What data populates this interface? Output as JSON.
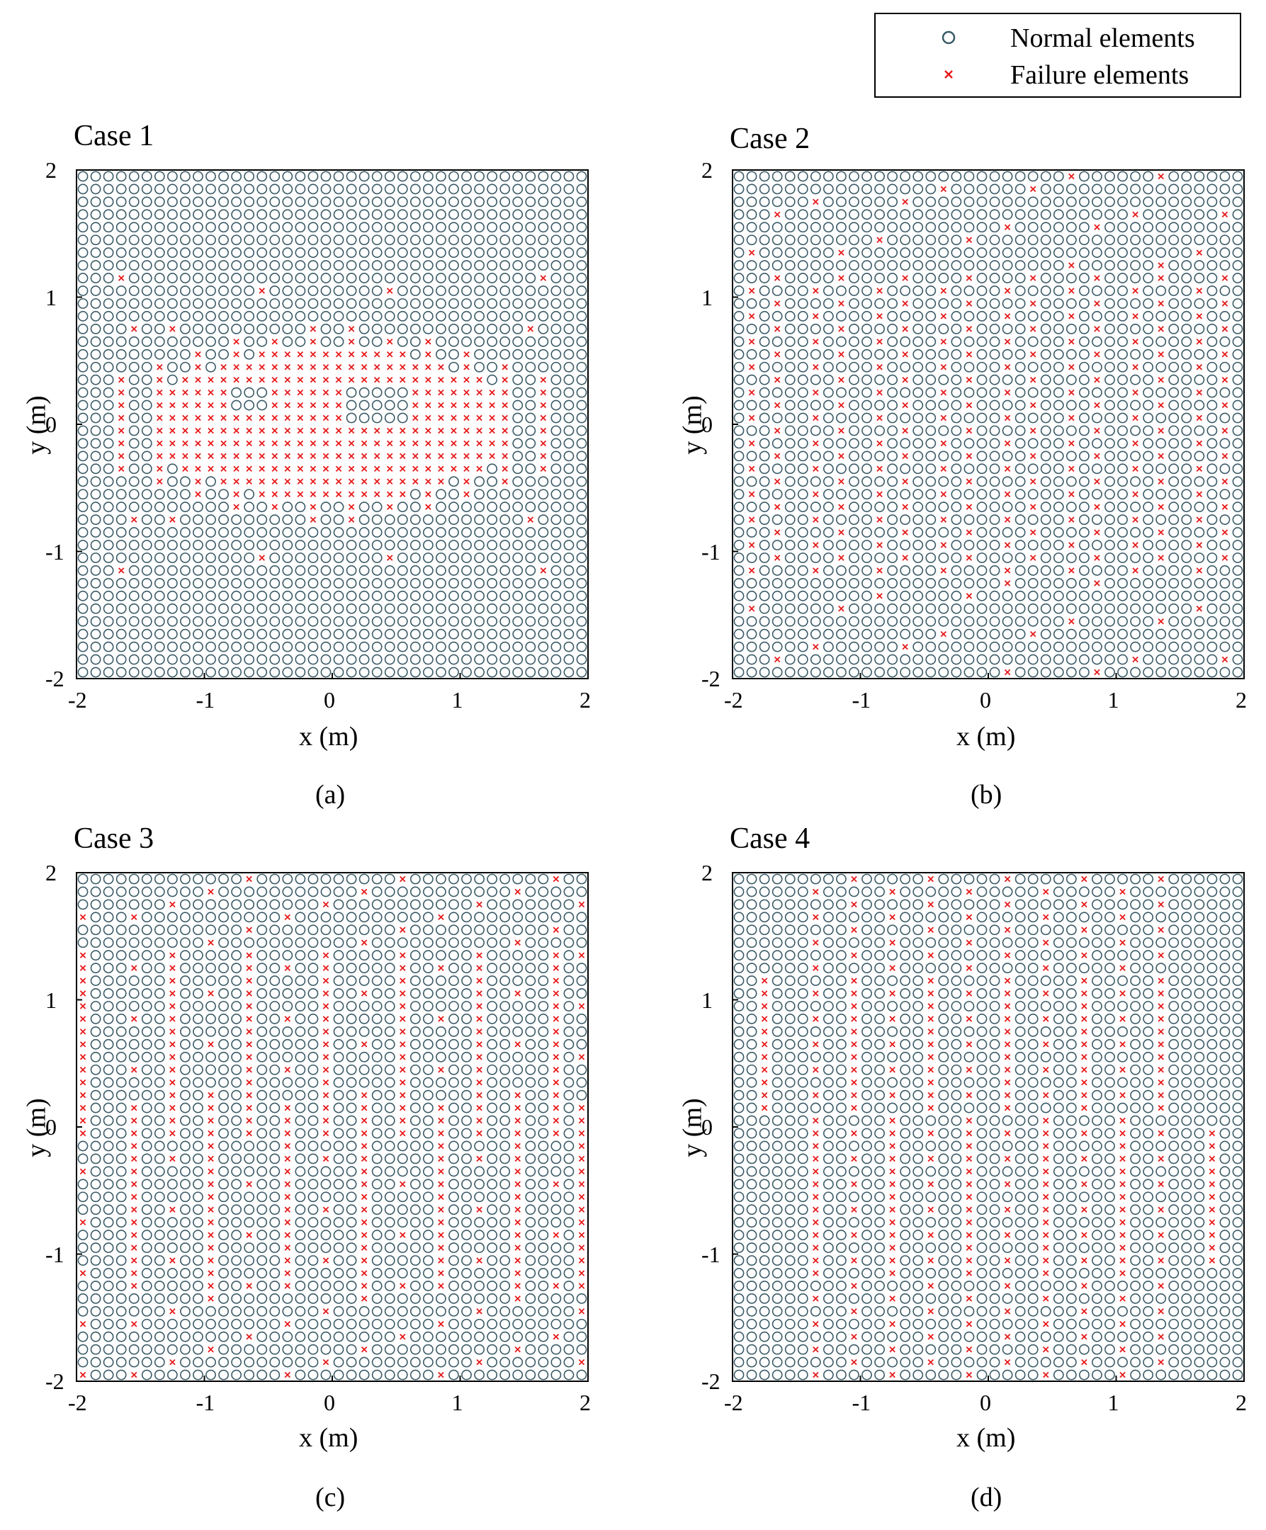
{
  "legend": {
    "normal_label": "Normal elements",
    "failure_label": "Failure elements"
  },
  "colors": {
    "normal": "#3a5a66",
    "failure": "#e8191a",
    "axes": "#000000"
  },
  "chart_data": [
    {
      "type": "scatter",
      "title": "Case 1",
      "panel_label": "(a)",
      "xlabel": "x (m)",
      "ylabel": "y (m)",
      "xlim": [
        -2,
        2
      ],
      "ylim": [
        -2,
        2
      ],
      "xticks": [
        "-2",
        "-1",
        "0",
        "1",
        "2"
      ],
      "yticks": [
        "-2",
        "-1",
        "0",
        "1",
        "2"
      ],
      "grid_n": 40,
      "cell_size": 0.1,
      "series": [
        {
          "name": "Normal elements",
          "marker": "circle",
          "points": "all grid elements not listed as failure"
        },
        {
          "name": "Failure elements",
          "marker": "x",
          "pattern": "case1_central_cluster"
        }
      ]
    },
    {
      "type": "scatter",
      "title": "Case 2",
      "panel_label": "(b)",
      "xlabel": "x (m)",
      "ylabel": "y (m)",
      "xlim": [
        -2,
        2
      ],
      "ylim": [
        -2,
        2
      ],
      "xticks": [
        "-2",
        "-1",
        "0",
        "1",
        "2"
      ],
      "yticks": [
        "-2",
        "-1",
        "0",
        "1",
        "2"
      ],
      "grid_n": 40,
      "cell_size": 0.1,
      "series": [
        {
          "name": "Normal elements",
          "marker": "circle",
          "points": "all grid elements not listed as failure"
        },
        {
          "name": "Failure elements",
          "marker": "x",
          "pattern": "case2_scattered_columns"
        }
      ]
    },
    {
      "type": "scatter",
      "title": "Case 3",
      "panel_label": "(c)",
      "xlabel": "x (m)",
      "ylabel": "y (m)",
      "xlim": [
        -2,
        2
      ],
      "ylim": [
        -2,
        2
      ],
      "xticks": [
        "-2",
        "-1",
        "0",
        "1",
        "2"
      ],
      "yticks": [
        "-2",
        "-1",
        "0",
        "1",
        "2"
      ],
      "grid_n": 40,
      "cell_size": 0.1,
      "series": [
        {
          "name": "Normal elements",
          "marker": "circle",
          "points": "all grid elements not listed as failure"
        },
        {
          "name": "Failure elements",
          "marker": "x",
          "pattern": "case3_vertical_stripes"
        }
      ]
    },
    {
      "type": "scatter",
      "title": "Case 4",
      "panel_label": "(d)",
      "xlabel": "x (m)",
      "ylabel": "y (m)",
      "xlim": [
        -2,
        2
      ],
      "ylim": [
        -2,
        2
      ],
      "xticks": [
        "-2",
        "-1",
        "0",
        "1",
        "2"
      ],
      "yticks": [
        "-2",
        "-1",
        "0",
        "1",
        "2"
      ],
      "grid_n": 40,
      "cell_size": 0.1,
      "series": [
        {
          "name": "Normal elements",
          "marker": "circle",
          "points": "all grid elements not listed as failure"
        },
        {
          "name": "Failure elements",
          "marker": "x",
          "pattern": "case4_column_groups"
        }
      ]
    }
  ]
}
